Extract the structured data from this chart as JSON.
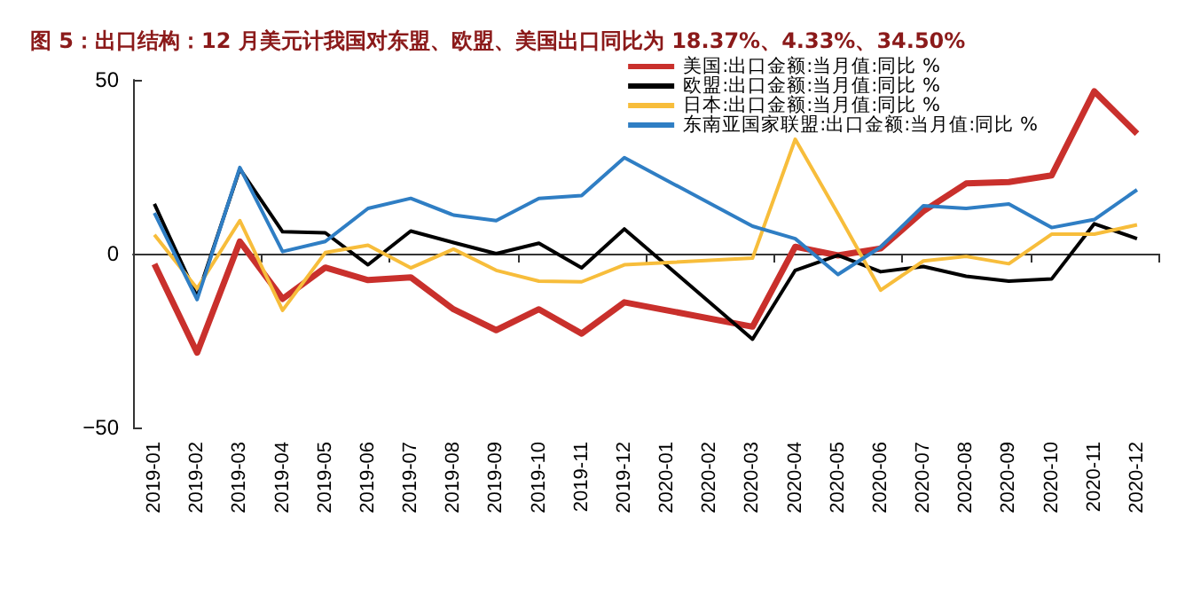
{
  "chart_data": {
    "type": "line",
    "title": "图 5：出口结构：12 月美元计我国对东盟、欧盟、美国出口同比为 18.37%、4.33%、34.50%",
    "categories": [
      "2019-01",
      "2019-02",
      "2019-03",
      "2019-04",
      "2019-05",
      "2019-06",
      "2019-07",
      "2019-08",
      "2019-09",
      "2019-10",
      "2019-11",
      "2019-12",
      "2020-01",
      "2020-02",
      "2020-03",
      "2020-04",
      "2020-05",
      "2020-06",
      "2020-07",
      "2020-08",
      "2020-09",
      "2020-10",
      "2020-11",
      "2020-12"
    ],
    "series": [
      {
        "name": "美国:出口金额:当月值:同比 %",
        "color": "#c9302c",
        "values": [
          -3,
          -28.5,
          3.5,
          -13,
          -4,
          -7.6,
          -6.8,
          -16,
          -22,
          -16,
          -23,
          -14,
          null,
          null,
          -21,
          2,
          -0.5,
          1.5,
          12.2,
          20.2,
          20.6,
          22.5,
          46.7,
          34.5
        ]
      },
      {
        "name": "欧盟:出口金额:当月值:同比 %",
        "color": "#000000",
        "values": [
          14.3,
          -12.4,
          24.4,
          6.3,
          6,
          -3.2,
          6.5,
          3.2,
          0,
          3,
          -4.1,
          7.1,
          null,
          null,
          -24.6,
          -4.8,
          -0.5,
          -5.2,
          -3.7,
          -6.5,
          -7.9,
          -7.3,
          8.6,
          4.33
        ]
      },
      {
        "name": "日本:出口金额:当月值:同比 %",
        "color": "#f7bd3b",
        "values": [
          5.4,
          -10,
          9.5,
          -16.3,
          0.3,
          2.4,
          -4.1,
          1.3,
          -4.8,
          -7.9,
          -8.1,
          -3.2,
          null,
          null,
          -1.3,
          32.9,
          11.5,
          -10.5,
          -2.1,
          -0.8,
          -2.9,
          5.6,
          5.6,
          8.3
        ]
      },
      {
        "name": "东南亚国家联盟:出口金额:当月值:同比 %",
        "color": "#2f7ec4",
        "values": [
          11.7,
          -13.2,
          24.8,
          0.6,
          3.5,
          13,
          15.9,
          11.1,
          9.5,
          15.9,
          16.7,
          27.6,
          null,
          null,
          7.9,
          4.3,
          -6,
          1.9,
          13.8,
          13,
          14.3,
          7.5,
          9.8,
          18.37
        ]
      }
    ],
    "ylim": [
      -50,
      50
    ],
    "yticks": [
      -50,
      0,
      50
    ],
    "legend": "top right"
  }
}
